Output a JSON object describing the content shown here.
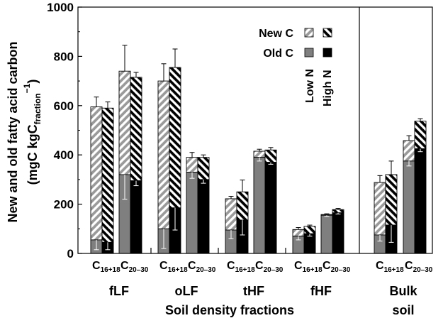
{
  "chart_data": {
    "type": "bar",
    "stacked": true,
    "ylabel_line1": "New and old fatty acid carbon",
    "ylabel_line2_pre": "(mgC kgC",
    "ylabel_line2_sub": "fraction",
    "ylabel_line2_sup": "−1",
    "ylabel_line2_post": ")",
    "xlabel": "Soil density fractions",
    "ylim": [
      0,
      1000
    ],
    "yticks": [
      "0",
      "200",
      "400",
      "600",
      "800",
      "1000"
    ],
    "groups": [
      {
        "label": "fLF",
        "label2": ""
      },
      {
        "label": "oLF",
        "label2": ""
      },
      {
        "label": "tHF",
        "label2": ""
      },
      {
        "label": "fHF",
        "label2": ""
      },
      {
        "label": "Bulk",
        "label2": "soil"
      }
    ],
    "categories": [
      {
        "main": "C",
        "sub": "16+18"
      },
      {
        "main": "C",
        "sub": "20–30"
      }
    ],
    "legend": {
      "new_c": "New C",
      "old_c": "Old C",
      "low_n": "Low N",
      "high_n": "High N"
    },
    "series": [
      {
        "treatment": "Low N",
        "group": [
          "fLF",
          "fLF",
          "oLF",
          "oLF",
          "tHF",
          "tHF",
          "fHF",
          "fHF",
          "Bulk soil",
          "Bulk soil"
        ],
        "category": [
          "C16+18",
          "C20-30",
          "C16+18",
          "C20-30",
          "C16+18",
          "C20-30",
          "C16+18",
          "C20-30",
          "C16+18",
          "C20-30"
        ],
        "old_c": [
          55,
          320,
          100,
          330,
          95,
          390,
          70,
          155,
          75,
          375
        ],
        "old_c_err": [
          40,
          100,
          80,
          25,
          35,
          15,
          15,
          5,
          25,
          20
        ],
        "total": [
          595,
          740,
          700,
          390,
          222,
          415,
          97,
          158,
          288,
          458
        ],
        "total_err": [
          40,
          105,
          70,
          20,
          10,
          8,
          8,
          3,
          28,
          20
        ]
      },
      {
        "treatment": "High N",
        "group": [
          "fLF",
          "fLF",
          "oLF",
          "oLF",
          "tHF",
          "tHF",
          "fHF",
          "fHF",
          "Bulk soil",
          "Bulk soil"
        ],
        "category": [
          "C16+18",
          "C20-30",
          "C16+18",
          "C20-30",
          "C16+18",
          "C20-30",
          "C16+18",
          "C20-30",
          "C16+18",
          "C20-30"
        ],
        "old_c": [
          45,
          295,
          185,
          300,
          135,
          370,
          80,
          165,
          115,
          425
        ],
        "old_c_err": [
          30,
          20,
          90,
          15,
          60,
          8,
          10,
          5,
          70,
          12
        ],
        "total": [
          590,
          715,
          755,
          390,
          250,
          420,
          110,
          178,
          320,
          537
        ],
        "total_err": [
          25,
          20,
          75,
          10,
          48,
          10,
          5,
          5,
          55,
          10
        ]
      }
    ],
    "colors": {
      "old_low": "#7f7f7f",
      "old_high": "#000000",
      "axis": "#000000",
      "background": "#ffffff"
    }
  }
}
